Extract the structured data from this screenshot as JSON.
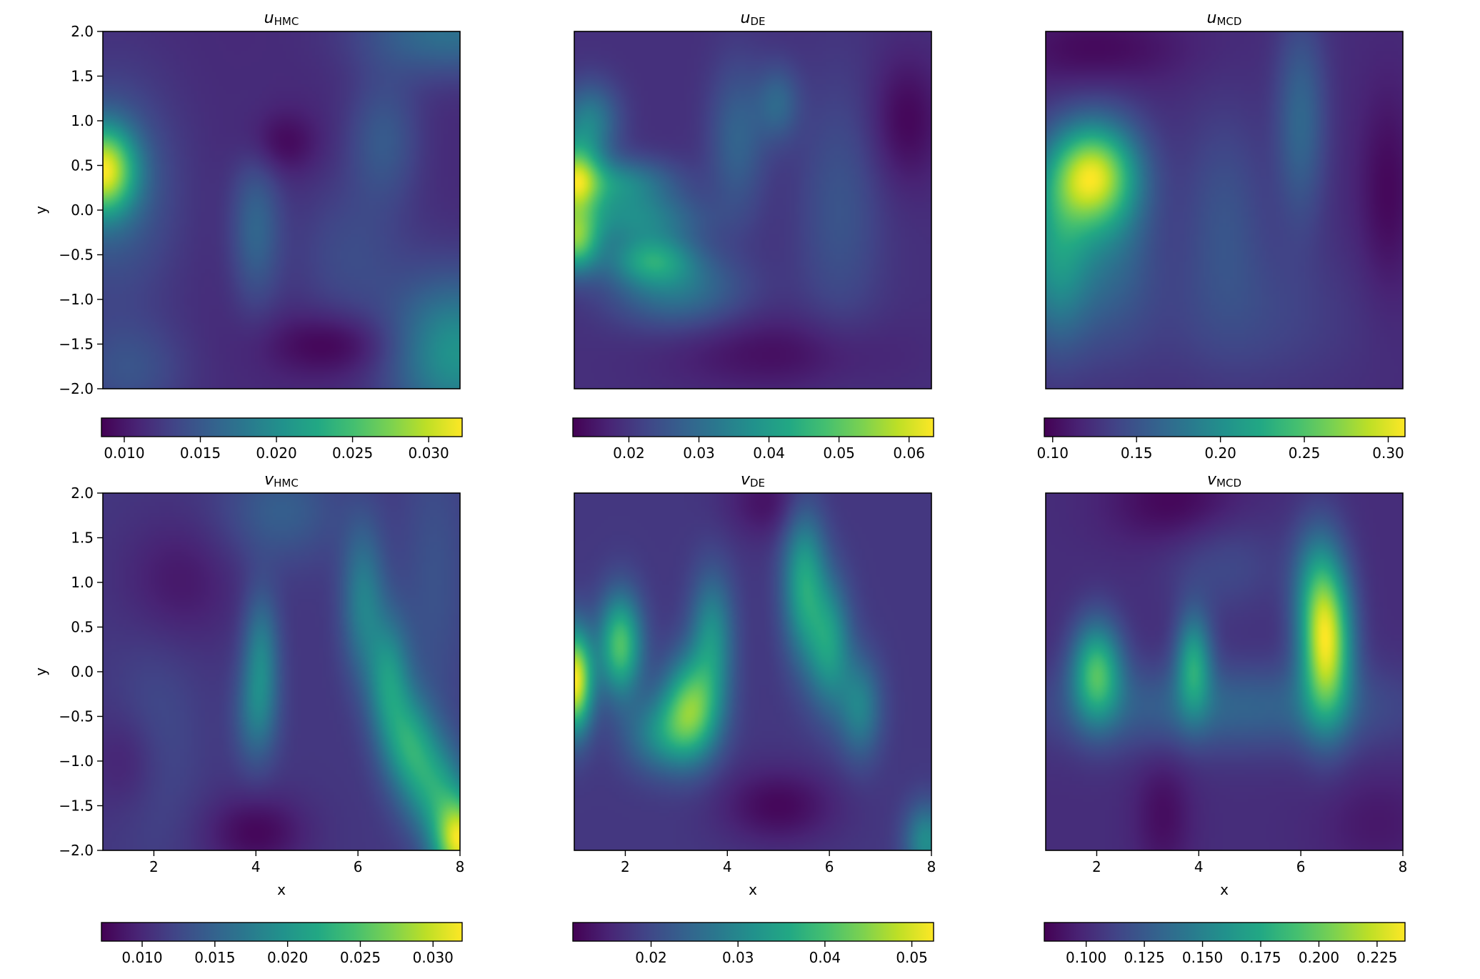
{
  "chart_data": [
    {
      "type": "heatmap",
      "title": "u",
      "title_sub": "HMC",
      "xlabel": "",
      "ylabel": "y",
      "xlim": [
        1,
        8
      ],
      "ylim": [
        -2.0,
        2.0
      ],
      "xticks": [],
      "yticks": [
        "2.0",
        "1.5",
        "1.0",
        "0.5",
        "0.0",
        "−0.5",
        "−1.0",
        "−1.5",
        "−2.0"
      ],
      "colormap": "viridis",
      "colorbar": {
        "min": 0.0085,
        "max": 0.0322,
        "ticks": [
          "0.010",
          "0.015",
          "0.020",
          "0.025",
          "0.030"
        ],
        "tick_values": [
          0.01,
          0.015,
          0.02,
          0.025,
          0.03
        ]
      },
      "blobs": [
        {
          "x": 1.0,
          "y": 0.45,
          "sx": 0.45,
          "sy": 0.35,
          "a": 1.0
        },
        {
          "x": 1.2,
          "y": 0.2,
          "sx": 0.9,
          "sy": 0.9,
          "a": 0.25
        },
        {
          "x": 7.9,
          "y": -1.6,
          "sx": 0.9,
          "sy": 0.6,
          "a": 0.55
        },
        {
          "x": 7.8,
          "y": 2.0,
          "sx": 1.2,
          "sy": 0.35,
          "a": 0.35
        },
        {
          "x": 4.0,
          "y": -0.2,
          "sx": 0.35,
          "sy": 0.6,
          "a": 0.28
        },
        {
          "x": 6.5,
          "y": 0.8,
          "sx": 0.5,
          "sy": 0.5,
          "a": 0.22
        },
        {
          "x": 5.8,
          "y": -0.5,
          "sx": 0.8,
          "sy": 0.6,
          "a": 0.15
        },
        {
          "x": 1.5,
          "y": -1.8,
          "sx": 0.8,
          "sy": 0.4,
          "a": 0.18
        },
        {
          "x": 5.5,
          "y": -1.5,
          "sx": 0.9,
          "sy": 0.25,
          "a": -0.18
        },
        {
          "x": 4.5,
          "y": 0.75,
          "sx": 0.5,
          "sy": 0.25,
          "a": -0.15
        }
      ]
    },
    {
      "type": "heatmap",
      "title": "u",
      "title_sub": "DE",
      "xlabel": "",
      "ylabel": "",
      "xlim": [
        1,
        8
      ],
      "ylim": [
        -2.0,
        2.0
      ],
      "xticks": [],
      "yticks": [],
      "colormap": "viridis",
      "colorbar": {
        "min": 0.012,
        "max": 0.0635,
        "ticks": [
          "0.02",
          "0.03",
          "0.04",
          "0.05",
          "0.06"
        ],
        "tick_values": [
          0.02,
          0.03,
          0.04,
          0.05,
          0.06
        ]
      },
      "blobs": [
        {
          "x": 1.0,
          "y": 0.35,
          "sx": 0.35,
          "sy": 0.3,
          "a": 0.75
        },
        {
          "x": 1.0,
          "y": -0.35,
          "sx": 0.35,
          "sy": 0.25,
          "a": 0.7
        },
        {
          "x": 2.5,
          "y": -0.55,
          "sx": 0.6,
          "sy": 0.2,
          "a": 0.45
        },
        {
          "x": 1.8,
          "y": 0.3,
          "sx": 0.8,
          "sy": 0.2,
          "a": 0.4
        },
        {
          "x": 2.2,
          "y": -0.1,
          "sx": 0.9,
          "sy": 0.2,
          "a": 0.35
        },
        {
          "x": 1.3,
          "y": 1.0,
          "sx": 0.4,
          "sy": 0.3,
          "a": 0.35
        },
        {
          "x": 3.0,
          "y": -0.9,
          "sx": 0.9,
          "sy": 0.3,
          "a": 0.3
        },
        {
          "x": 4.2,
          "y": 0.8,
          "sx": 0.4,
          "sy": 0.6,
          "a": 0.22
        },
        {
          "x": 5.0,
          "y": 1.2,
          "sx": 0.3,
          "sy": 0.3,
          "a": 0.22
        },
        {
          "x": 6.2,
          "y": 0.0,
          "sx": 0.6,
          "sy": 1.0,
          "a": 0.15
        },
        {
          "x": 7.5,
          "y": 1.0,
          "sx": 0.5,
          "sy": 0.5,
          "a": -0.15
        },
        {
          "x": 5.0,
          "y": -1.6,
          "sx": 1.5,
          "sy": 0.3,
          "a": -0.12
        }
      ]
    },
    {
      "type": "heatmap",
      "title": "u",
      "title_sub": "MCD",
      "xlabel": "",
      "ylabel": "",
      "xlim": [
        1,
        8
      ],
      "ylim": [
        -2.0,
        2.0
      ],
      "xticks": [],
      "yticks": [],
      "colormap": "viridis",
      "colorbar": {
        "min": 0.095,
        "max": 0.31,
        "ticks": [
          "0.10",
          "0.15",
          "0.20",
          "0.25",
          "0.30"
        ],
        "tick_values": [
          0.1,
          0.15,
          0.2,
          0.25,
          0.3
        ]
      },
      "blobs": [
        {
          "x": 1.9,
          "y": 0.4,
          "sx": 0.6,
          "sy": 0.4,
          "a": 1.0
        },
        {
          "x": 1.2,
          "y": -0.5,
          "sx": 0.5,
          "sy": 0.7,
          "a": 0.55
        },
        {
          "x": 2.3,
          "y": -0.3,
          "sx": 0.6,
          "sy": 0.8,
          "a": 0.3
        },
        {
          "x": 6.0,
          "y": 1.0,
          "sx": 0.35,
          "sy": 0.8,
          "a": 0.3
        },
        {
          "x": 4.5,
          "y": 0.0,
          "sx": 0.6,
          "sy": 0.8,
          "a": 0.18
        },
        {
          "x": 5.0,
          "y": -1.2,
          "sx": 1.5,
          "sy": 0.6,
          "a": 0.12
        },
        {
          "x": 7.7,
          "y": 0.2,
          "sx": 0.4,
          "sy": 0.8,
          "a": -0.15
        },
        {
          "x": 2.0,
          "y": 1.8,
          "sx": 1.2,
          "sy": 0.3,
          "a": -0.15
        }
      ]
    },
    {
      "type": "heatmap",
      "title": "v",
      "title_sub": "HMC",
      "xlabel": "x",
      "ylabel": "y",
      "xlim": [
        1,
        8
      ],
      "ylim": [
        -2.0,
        2.0
      ],
      "xticks": [
        "2",
        "4",
        "6",
        "8"
      ],
      "xtick_values": [
        2,
        4,
        6,
        8
      ],
      "yticks": [
        "2.0",
        "1.5",
        "1.0",
        "0.5",
        "0.0",
        "−0.5",
        "−1.0",
        "−1.5",
        "−2.0"
      ],
      "colormap": "viridis",
      "colorbar": {
        "min": 0.0072,
        "max": 0.032,
        "ticks": [
          "0.010",
          "0.015",
          "0.020",
          "0.025",
          "0.030"
        ],
        "tick_values": [
          0.01,
          0.015,
          0.02,
          0.025,
          0.03
        ]
      },
      "blobs": [
        {
          "x": 8.0,
          "y": -1.9,
          "sx": 0.35,
          "sy": 0.35,
          "a": 1.0
        },
        {
          "x": 7.5,
          "y": -1.3,
          "sx": 0.4,
          "sy": 0.4,
          "a": 0.45
        },
        {
          "x": 7.0,
          "y": -0.8,
          "sx": 0.35,
          "sy": 0.4,
          "a": 0.45
        },
        {
          "x": 6.6,
          "y": -0.1,
          "sx": 0.3,
          "sy": 0.5,
          "a": 0.45
        },
        {
          "x": 6.1,
          "y": 0.8,
          "sx": 0.3,
          "sy": 0.6,
          "a": 0.35
        },
        {
          "x": 4.1,
          "y": 0.2,
          "sx": 0.25,
          "sy": 0.5,
          "a": 0.35
        },
        {
          "x": 4.0,
          "y": -0.5,
          "sx": 0.3,
          "sy": 0.4,
          "a": 0.25
        },
        {
          "x": 4.5,
          "y": 1.8,
          "sx": 0.8,
          "sy": 0.4,
          "a": 0.18
        },
        {
          "x": 7.5,
          "y": 1.0,
          "sx": 0.5,
          "sy": 1.2,
          "a": 0.12
        },
        {
          "x": 2.0,
          "y": -0.8,
          "sx": 0.6,
          "sy": 0.8,
          "a": 0.1
        },
        {
          "x": 4.0,
          "y": -1.8,
          "sx": 0.7,
          "sy": 0.3,
          "a": -0.18
        },
        {
          "x": 1.5,
          "y": -1.0,
          "sx": 0.5,
          "sy": 0.4,
          "a": -0.12
        },
        {
          "x": 2.5,
          "y": 1.0,
          "sx": 0.8,
          "sy": 0.5,
          "a": -0.12
        }
      ]
    },
    {
      "type": "heatmap",
      "title": "v",
      "title_sub": "DE",
      "xlabel": "x",
      "ylabel": "",
      "xlim": [
        1,
        8
      ],
      "ylim": [
        -2.0,
        2.0
      ],
      "xticks": [
        "2",
        "4",
        "6",
        "8"
      ],
      "xtick_values": [
        2,
        4,
        6,
        8
      ],
      "yticks": [],
      "colormap": "viridis",
      "colorbar": {
        "min": 0.011,
        "max": 0.0525,
        "ticks": [
          "0.02",
          "0.03",
          "0.04",
          "0.05"
        ],
        "tick_values": [
          0.02,
          0.03,
          0.04,
          0.05
        ]
      },
      "blobs": [
        {
          "x": 1.0,
          "y": -0.1,
          "sx": 0.25,
          "sy": 0.4,
          "a": 0.9
        },
        {
          "x": 1.9,
          "y": 0.3,
          "sx": 0.3,
          "sy": 0.4,
          "a": 0.6
        },
        {
          "x": 3.3,
          "y": -0.4,
          "sx": 0.4,
          "sy": 0.4,
          "a": 0.6
        },
        {
          "x": 3.7,
          "y": 0.4,
          "sx": 0.3,
          "sy": 0.5,
          "a": 0.35
        },
        {
          "x": 5.5,
          "y": 1.0,
          "sx": 0.3,
          "sy": 0.6,
          "a": 0.45
        },
        {
          "x": 6.0,
          "y": 0.3,
          "sx": 0.3,
          "sy": 0.5,
          "a": 0.4
        },
        {
          "x": 6.6,
          "y": -0.4,
          "sx": 0.3,
          "sy": 0.4,
          "a": 0.3
        },
        {
          "x": 2.7,
          "y": -0.7,
          "sx": 0.5,
          "sy": 0.3,
          "a": 0.3
        },
        {
          "x": 7.9,
          "y": -1.9,
          "sx": 0.3,
          "sy": 0.3,
          "a": 0.35
        },
        {
          "x": 5.0,
          "y": -1.5,
          "sx": 0.8,
          "sy": 0.3,
          "a": -0.15
        },
        {
          "x": 4.8,
          "y": 1.9,
          "sx": 0.6,
          "sy": 0.3,
          "a": -0.12
        }
      ]
    },
    {
      "type": "heatmap",
      "title": "v",
      "title_sub": "MCD",
      "xlabel": "x",
      "ylabel": "",
      "xlim": [
        1,
        8
      ],
      "ylim": [
        -2.0,
        2.0
      ],
      "xticks": [
        "2",
        "4",
        "6",
        "8"
      ],
      "xtick_values": [
        2,
        4,
        6,
        8
      ],
      "yticks": [],
      "colormap": "viridis",
      "colorbar": {
        "min": 0.082,
        "max": 0.237,
        "ticks": [
          "0.100",
          "0.125",
          "0.150",
          "0.175",
          "0.200",
          "0.225"
        ],
        "tick_values": [
          0.1,
          0.125,
          0.15,
          0.175,
          0.2,
          0.225
        ]
      },
      "blobs": [
        {
          "x": 6.5,
          "y": 0.3,
          "sx": 0.35,
          "sy": 0.6,
          "a": 1.0
        },
        {
          "x": 2.0,
          "y": 0.0,
          "sx": 0.35,
          "sy": 0.4,
          "a": 0.7
        },
        {
          "x": 3.9,
          "y": 0.1,
          "sx": 0.25,
          "sy": 0.4,
          "a": 0.55
        },
        {
          "x": 6.3,
          "y": 1.0,
          "sx": 0.35,
          "sy": 0.5,
          "a": 0.3
        },
        {
          "x": 4.5,
          "y": -0.4,
          "sx": 2.5,
          "sy": 0.35,
          "a": 0.25
        },
        {
          "x": 4.5,
          "y": 1.2,
          "sx": 0.8,
          "sy": 0.4,
          "a": 0.12
        },
        {
          "x": 3.3,
          "y": -1.6,
          "sx": 0.4,
          "sy": 0.5,
          "a": -0.12
        },
        {
          "x": 3.5,
          "y": 1.9,
          "sx": 0.9,
          "sy": 0.35,
          "a": -0.15
        },
        {
          "x": 7.5,
          "y": -1.7,
          "sx": 0.8,
          "sy": 0.4,
          "a": -0.08
        }
      ]
    }
  ]
}
